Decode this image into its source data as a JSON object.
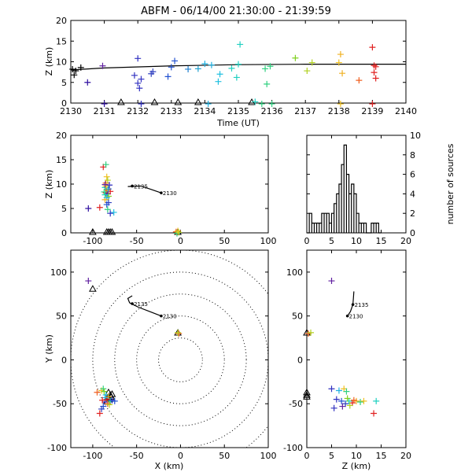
{
  "title": "ABFM - 06/14/00 21:30:00 - 21:39:59",
  "chart_data": [
    {
      "id": "time-height",
      "type": "scatter",
      "xlabel": "Time (UT)",
      "ylabel": "Z (km)",
      "xlim": [
        2130,
        2140
      ],
      "ylim": [
        0,
        20
      ],
      "xticks": [
        "2130",
        "2131",
        "2132",
        "2133",
        "2134",
        "2135",
        "2136",
        "2137",
        "2138",
        "2139",
        "2140"
      ],
      "yticks": [
        "0",
        "5",
        "10",
        "15",
        "20"
      ],
      "track_line": [
        [
          2130.0,
          8.0
        ],
        [
          2131.0,
          8.5
        ],
        [
          2133.0,
          9.0
        ],
        [
          2135.0,
          9.3
        ],
        [
          2137.0,
          9.4
        ],
        [
          2140.0,
          9.4
        ]
      ],
      "sources": [
        {
          "x": 2130.05,
          "y": 8.2,
          "c": "#000000"
        },
        {
          "x": 2130.15,
          "y": 7.8,
          "c": "#000000"
        },
        {
          "x": 2130.3,
          "y": 8.6,
          "c": "#000000"
        },
        {
          "x": 2130.1,
          "y": 6.8,
          "c": "#000000"
        },
        {
          "x": 2130.5,
          "y": 5.0,
          "c": "#3010a0"
        },
        {
          "x": 2130.95,
          "y": 9.0,
          "c": "#6020a0"
        },
        {
          "x": 2131.9,
          "y": 6.7,
          "c": "#3030c0"
        },
        {
          "x": 2132.0,
          "y": 4.8,
          "c": "#3030c0"
        },
        {
          "x": 2132.0,
          "y": 10.8,
          "c": "#3030c0"
        },
        {
          "x": 2132.05,
          "y": 3.6,
          "c": "#3030c0"
        },
        {
          "x": 2132.1,
          "y": 5.8,
          "c": "#3030c0"
        },
        {
          "x": 2132.4,
          "y": 7.1,
          "c": "#3040c0"
        },
        {
          "x": 2132.45,
          "y": 7.6,
          "c": "#3040c0"
        },
        {
          "x": 2132.9,
          "y": 6.4,
          "c": "#2050d0"
        },
        {
          "x": 2133.0,
          "y": 8.7,
          "c": "#2050d0"
        },
        {
          "x": 2133.1,
          "y": 10.2,
          "c": "#2050d0"
        },
        {
          "x": 2133.5,
          "y": 8.2,
          "c": "#2080d0"
        },
        {
          "x": 2133.8,
          "y": 8.3,
          "c": "#20a0d0"
        },
        {
          "x": 2134.0,
          "y": 9.5,
          "c": "#20b0e0"
        },
        {
          "x": 2134.2,
          "y": 9.2,
          "c": "#20b0e0"
        },
        {
          "x": 2134.4,
          "y": 5.2,
          "c": "#20c0e0"
        },
        {
          "x": 2134.45,
          "y": 7.0,
          "c": "#20c0e0"
        },
        {
          "x": 2134.8,
          "y": 8.4,
          "c": "#20d0c0"
        },
        {
          "x": 2134.95,
          "y": 6.2,
          "c": "#20d0c0"
        },
        {
          "x": 2135.0,
          "y": 9.4,
          "c": "#20d0c0"
        },
        {
          "x": 2135.05,
          "y": 14.2,
          "c": "#20d0c0"
        },
        {
          "x": 2135.8,
          "y": 8.3,
          "c": "#30d080"
        },
        {
          "x": 2135.85,
          "y": 4.6,
          "c": "#30d080"
        },
        {
          "x": 2135.95,
          "y": 8.9,
          "c": "#30d080"
        },
        {
          "x": 2136.7,
          "y": 10.9,
          "c": "#80d020"
        },
        {
          "x": 2137.05,
          "y": 7.8,
          "c": "#b0d020"
        },
        {
          "x": 2137.2,
          "y": 9.8,
          "c": "#b0d020"
        },
        {
          "x": 2138.0,
          "y": 9.8,
          "c": "#f0c020"
        },
        {
          "x": 2138.05,
          "y": 11.8,
          "c": "#f0b020"
        },
        {
          "x": 2138.1,
          "y": 7.2,
          "c": "#f0b020"
        },
        {
          "x": 2138.6,
          "y": 5.5,
          "c": "#f06020"
        },
        {
          "x": 2139.0,
          "y": 13.5,
          "c": "#e02020"
        },
        {
          "x": 2139.05,
          "y": 9.1,
          "c": "#e02020"
        },
        {
          "x": 2139.1,
          "y": 8.8,
          "c": "#e02020"
        },
        {
          "x": 2139.05,
          "y": 7.4,
          "c": "#e02020"
        },
        {
          "x": 2139.1,
          "y": 6.0,
          "c": "#e02020"
        },
        {
          "x": 2131.0,
          "y": -0.2,
          "c": "#3010a0"
        },
        {
          "x": 2132.1,
          "y": -0.2,
          "c": "#3030c0"
        },
        {
          "x": 2134.1,
          "y": -0.2,
          "c": "#20b0e0"
        },
        {
          "x": 2135.5,
          "y": 0.3,
          "c": "#20d0c0"
        },
        {
          "x": 2135.7,
          "y": -0.2,
          "c": "#30d080"
        },
        {
          "x": 2136.0,
          "y": -0.2,
          "c": "#30d080"
        },
        {
          "x": 2138.05,
          "y": -0.2,
          "c": "#f0c020"
        },
        {
          "x": 2139.0,
          "y": -0.2,
          "c": "#e02020"
        }
      ],
      "stations": [
        [
          2131.5,
          0.0
        ],
        [
          2132.5,
          0.0
        ],
        [
          2133.2,
          0.0
        ],
        [
          2133.8,
          0.0
        ],
        [
          2135.4,
          0.0
        ]
      ]
    },
    {
      "id": "x-z",
      "type": "scatter",
      "ylabel": "Z (km)",
      "xlim": [
        -125,
        100
      ],
      "ylim": [
        0,
        20
      ],
      "xticks": [
        "-100",
        "-50",
        "0",
        "50",
        "100"
      ],
      "yticks": [
        "0",
        "5",
        "10",
        "15",
        "20"
      ],
      "track_line": [
        [
          -60,
          9.5
        ],
        [
          -45,
          9.6
        ],
        [
          -35,
          9.0
        ],
        [
          -22,
          8.2
        ]
      ],
      "track_labels": [
        {
          "text": "2135",
          "x": -55,
          "y": 9.6
        },
        {
          "text": "2130",
          "x": -22,
          "y": 8.2
        }
      ],
      "sources": [
        {
          "x": -105,
          "y": 5.0,
          "c": "#3010a0"
        },
        {
          "x": -92,
          "y": 5.2,
          "c": "#e02020"
        },
        {
          "x": -88,
          "y": 13.5,
          "c": "#e02020"
        },
        {
          "x": -85,
          "y": 14.0,
          "c": "#30d080"
        },
        {
          "x": -84,
          "y": 11.5,
          "c": "#f0c020"
        },
        {
          "x": -85,
          "y": 10.2,
          "c": "#f06020"
        },
        {
          "x": -86,
          "y": 9.3,
          "c": "#20d0c0"
        },
        {
          "x": -84,
          "y": 8.8,
          "c": "#b0d020"
        },
        {
          "x": -85,
          "y": 8.2,
          "c": "#e02020"
        },
        {
          "x": -83,
          "y": 8.0,
          "c": "#3030c0"
        },
        {
          "x": -82,
          "y": 7.5,
          "c": "#80d020"
        },
        {
          "x": -84,
          "y": 7.2,
          "c": "#20b0e0"
        },
        {
          "x": -86,
          "y": 6.8,
          "c": "#f0b020"
        },
        {
          "x": -82,
          "y": 6.2,
          "c": "#3040c0"
        },
        {
          "x": -84,
          "y": 5.8,
          "c": "#2050d0"
        },
        {
          "x": -83,
          "y": 4.8,
          "c": "#30d080"
        },
        {
          "x": -80,
          "y": 4.0,
          "c": "#3030c0"
        },
        {
          "x": -76,
          "y": 4.2,
          "c": "#20c0e0"
        },
        {
          "x": -81,
          "y": 9.8,
          "c": "#3030c0"
        },
        {
          "x": -85,
          "y": 9.6,
          "c": "#f0c020"
        },
        {
          "x": -86,
          "y": 7.8,
          "c": "#20d0c0"
        },
        {
          "x": -80,
          "y": 8.5,
          "c": "#e02020"
        },
        {
          "x": -83,
          "y": 10.8,
          "c": "#b0d020"
        },
        {
          "x": -87,
          "y": 8.4,
          "c": "#30d080"
        },
        {
          "x": -82,
          "y": 9.0,
          "c": "#2080d0"
        },
        {
          "x": -86,
          "y": 9.9,
          "c": "#6020a0"
        },
        {
          "x": -5,
          "y": 0.2,
          "c": "#f06020"
        },
        {
          "x": -4,
          "y": -0.1,
          "c": "#30d080"
        },
        {
          "x": -2,
          "y": 0.1,
          "c": "#b0d020"
        },
        {
          "x": -3,
          "y": 0.4,
          "c": "#f0c020"
        }
      ],
      "stations": [
        [
          -100,
          0.0
        ],
        [
          -82,
          0.0
        ],
        [
          -80,
          0.0
        ],
        [
          -78,
          0.0
        ],
        [
          -84,
          0.0
        ],
        [
          -3,
          0.0
        ]
      ]
    },
    {
      "id": "histogram",
      "type": "bar",
      "ylabel": "number of sources",
      "xlim": [
        0,
        20
      ],
      "ylim": [
        0,
        10
      ],
      "xticks": [
        "0",
        "5",
        "10",
        "15",
        "20"
      ],
      "yticks": [
        "0",
        "2",
        "4",
        "6",
        "8",
        "10"
      ],
      "bin_width": 0.5,
      "bin_starts": [
        0.5,
        1.0,
        1.5,
        2.0,
        2.5,
        3.0,
        3.5,
        4.0,
        4.5,
        5.0,
        5.5,
        6.0,
        6.5,
        7.0,
        7.5,
        8.0,
        8.5,
        9.0,
        9.5,
        10.0,
        10.5,
        11.0,
        11.5,
        12.0,
        12.5,
        13.0,
        13.5,
        14.0,
        14.5
      ],
      "counts": [
        2,
        1,
        1,
        1,
        1,
        2,
        2,
        2,
        1,
        2,
        3,
        4,
        5,
        7,
        9,
        6,
        4,
        5,
        4,
        2,
        1,
        1,
        1,
        0,
        0,
        1,
        1,
        1,
        0
      ]
    },
    {
      "id": "plan-view",
      "type": "scatter",
      "xlabel": "X (km)",
      "ylabel": "Y (km)",
      "xlim": [
        -125,
        100
      ],
      "ylim": [
        -100,
        125
      ],
      "xticks": [
        "-100",
        "-50",
        "0",
        "50",
        "100"
      ],
      "yticks": [
        "-100",
        "-50",
        "0",
        "50",
        "100"
      ],
      "range_rings_km": [
        25,
        50,
        75,
        100,
        125
      ],
      "track_line": [
        [
          -55,
          73
        ],
        [
          -60,
          70
        ],
        [
          -58,
          65
        ],
        [
          -48,
          60
        ],
        [
          -35,
          55
        ],
        [
          -22,
          50
        ]
      ],
      "track_labels": [
        {
          "text": "2135",
          "x": -55,
          "y": 64
        },
        {
          "text": "2130",
          "x": -22,
          "y": 50
        }
      ],
      "sources": [
        {
          "x": -105,
          "y": 90,
          "c": "#6020a0"
        },
        {
          "x": -2,
          "y": 30,
          "c": "#f06020"
        },
        {
          "x": -3,
          "y": 31,
          "c": "#b0d020"
        },
        {
          "x": -95,
          "y": -37,
          "c": "#f06020"
        },
        {
          "x": -90,
          "y": -35,
          "c": "#f0c020"
        },
        {
          "x": -88,
          "y": -33,
          "c": "#30d080"
        },
        {
          "x": -87,
          "y": -36,
          "c": "#80d020"
        },
        {
          "x": -85,
          "y": -40,
          "c": "#20c0e0"
        },
        {
          "x": -82,
          "y": -42,
          "c": "#f0b020"
        },
        {
          "x": -84,
          "y": -45,
          "c": "#e02020"
        },
        {
          "x": -80,
          "y": -47,
          "c": "#20d0c0"
        },
        {
          "x": -86,
          "y": -48,
          "c": "#3030c0"
        },
        {
          "x": -83,
          "y": -50,
          "c": "#f06020"
        },
        {
          "x": -88,
          "y": -53,
          "c": "#2050d0"
        },
        {
          "x": -90,
          "y": -56,
          "c": "#3040c0"
        },
        {
          "x": -92,
          "y": -61,
          "c": "#e02020"
        },
        {
          "x": -78,
          "y": -46,
          "c": "#3030c0"
        },
        {
          "x": -75,
          "y": -47,
          "c": "#2050d0"
        },
        {
          "x": -86,
          "y": -43,
          "c": "#20b0e0"
        },
        {
          "x": -81,
          "y": -51,
          "c": "#b0d020"
        },
        {
          "x": -89,
          "y": -46,
          "c": "#e02020"
        }
      ],
      "stations": [
        [
          -100,
          80
        ],
        [
          -3,
          30
        ],
        [
          -82,
          -38
        ],
        [
          -80,
          -41
        ],
        [
          -78,
          -40
        ],
        [
          -83,
          -44
        ],
        [
          -81,
          -46
        ],
        [
          -84,
          -48
        ],
        [
          -79,
          -43
        ]
      ]
    },
    {
      "id": "z-y",
      "type": "scatter",
      "xlabel": "Z (km)",
      "xlim": [
        0,
        20
      ],
      "ylim": [
        -100,
        125
      ],
      "xticks": [
        "0",
        "5",
        "10",
        "15",
        "20"
      ],
      "yticks": [
        "-100",
        "-50",
        "0",
        "50",
        "100"
      ],
      "track_line": [
        [
          9.5,
          78
        ],
        [
          9.4,
          70
        ],
        [
          9.3,
          63
        ],
        [
          8.8,
          55
        ],
        [
          8.2,
          50
        ]
      ],
      "track_labels": [
        {
          "text": "2135",
          "x": 9.3,
          "y": 63
        },
        {
          "text": "2130",
          "x": 8.2,
          "y": 50
        }
      ],
      "sources": [
        {
          "x": 5.0,
          "y": 90,
          "c": "#6020a0"
        },
        {
          "x": 0.3,
          "y": 30,
          "c": "#f06020"
        },
        {
          "x": 0.8,
          "y": 31,
          "c": "#b0d020"
        },
        {
          "x": 5.0,
          "y": -33,
          "c": "#3030c0"
        },
        {
          "x": 6.5,
          "y": -35,
          "c": "#20b0e0"
        },
        {
          "x": 7.5,
          "y": -33,
          "c": "#f0c020"
        },
        {
          "x": 8.0,
          "y": -36,
          "c": "#30d080"
        },
        {
          "x": 6.0,
          "y": -45,
          "c": "#3030c0"
        },
        {
          "x": 7.0,
          "y": -47,
          "c": "#2050d0"
        },
        {
          "x": 7.8,
          "y": -50,
          "c": "#3040c0"
        },
        {
          "x": 8.5,
          "y": -47,
          "c": "#20d0c0"
        },
        {
          "x": 9.2,
          "y": -49,
          "c": "#e02020"
        },
        {
          "x": 10.0,
          "y": -47,
          "c": "#f0b020"
        },
        {
          "x": 10.8,
          "y": -48,
          "c": "#30d080"
        },
        {
          "x": 11.5,
          "y": -47,
          "c": "#f0c020"
        },
        {
          "x": 14.0,
          "y": -47,
          "c": "#20d0c0"
        },
        {
          "x": 13.5,
          "y": -61,
          "c": "#e02020"
        },
        {
          "x": 5.5,
          "y": -55,
          "c": "#3030c0"
        },
        {
          "x": 8.7,
          "y": -52,
          "c": "#b0d020"
        },
        {
          "x": 9.5,
          "y": -46,
          "c": "#f06020"
        },
        {
          "x": 7.2,
          "y": -53,
          "c": "#6020a0"
        },
        {
          "x": 8.2,
          "y": -44,
          "c": "#80d020"
        }
      ],
      "stations": [
        [
          0.0,
          30
        ],
        [
          0.0,
          -38
        ],
        [
          0.0,
          -41
        ],
        [
          0.0,
          -43
        ]
      ]
    }
  ]
}
